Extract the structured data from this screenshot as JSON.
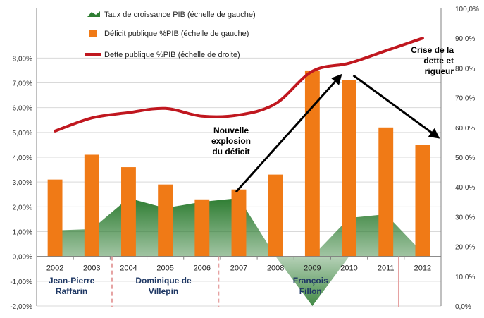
{
  "chart_data": {
    "type": "bar",
    "categories": [
      "2002",
      "2003",
      "2004",
      "2005",
      "2006",
      "2007",
      "2008",
      "2009",
      "2010",
      "2011",
      "2012"
    ],
    "series": [
      {
        "name": "Taux de croissance PIB (échelle de gauche)",
        "chart_type": "area",
        "axis": "left",
        "color": "#2E7D32",
        "values": [
          1.05,
          1.1,
          2.35,
          1.95,
          2.2,
          2.35,
          0.0,
          -2.0,
          1.55,
          1.7,
          0.15
        ]
      },
      {
        "name": "Déficit publique %PIB (échelle de gauche)",
        "chart_type": "bar",
        "axis": "left",
        "color": "#F07A16",
        "values": [
          3.1,
          4.1,
          3.6,
          2.9,
          2.3,
          2.7,
          3.3,
          7.5,
          7.1,
          5.2,
          4.5
        ]
      },
      {
        "name": "Dette publique %PIB (échelle de droite)",
        "chart_type": "line",
        "axis": "right",
        "color": "#C0171F",
        "values": [
          58.8,
          63.2,
          65.0,
          66.4,
          63.8,
          64.2,
          68.0,
          78.9,
          81.6,
          85.8,
          90.0
        ]
      }
    ],
    "y_left": {
      "ylim": [
        -2,
        10
      ],
      "ticks": [
        "-2,00%",
        "-1,00%",
        "0,00%",
        "1,00%",
        "2,00%",
        "3,00%",
        "4,00%",
        "5,00%",
        "6,00%",
        "7,00%",
        "8,00%"
      ]
    },
    "y_right": {
      "ylim": [
        0,
        100
      ],
      "ticks": [
        "0,0%",
        "10,0%",
        "20,0%",
        "30,0%",
        "40,0%",
        "50,0%",
        "60,0%",
        "70,0%",
        "80,0%",
        "90,0%",
        "100,0%"
      ]
    },
    "legend_position": "top-left",
    "colors": {
      "gridline": "#D9D9D9",
      "axis": "#808080",
      "pm_label": "#1F3864",
      "divider": "#E6A2A2",
      "arrow": "#000000"
    },
    "pm_periods": [
      {
        "label": "Jean-Pierre\nRaffarin",
        "from": "2002",
        "to": "2004"
      },
      {
        "label": "Dominique de\nVillepin",
        "from": "2005",
        "to": "2007"
      },
      {
        "label": "François\nFillon",
        "from": "2007",
        "to": "2012"
      }
    ],
    "annotations": [
      {
        "text": "Nouvelle\nexplosion\ndu déficit",
        "note_of": "arrow up from 2007 to 2010"
      },
      {
        "text": "Crise de la\ndette et\nrigueur",
        "note_of": "arrow down from 2010 to 2012"
      }
    ]
  }
}
